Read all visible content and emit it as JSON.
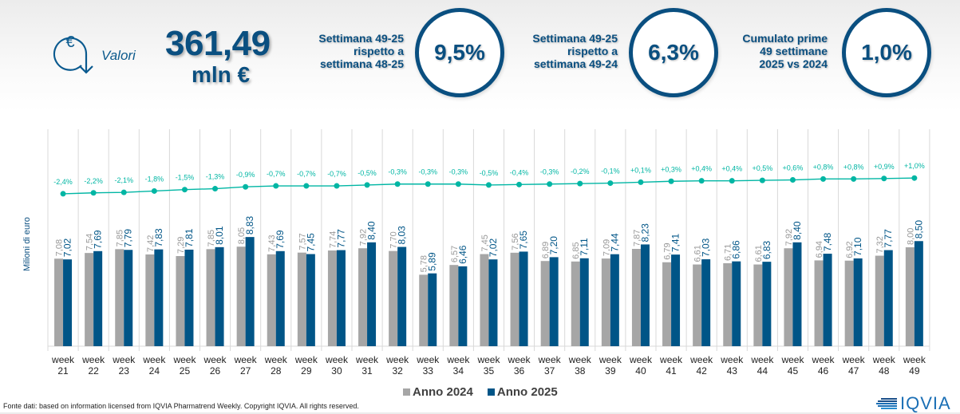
{
  "header": {
    "icon": "euro-circle-arrow-icon",
    "valori_label": "Valori",
    "total_value": "361,49",
    "total_unit": "mln €",
    "kpis": [
      {
        "label_lines": [
          "Settimana 49-25",
          "rispetto a",
          "settimana 48-25"
        ],
        "value": "9,5%"
      },
      {
        "label_lines": [
          "Settimana 49-25",
          "rispetto a",
          "settimana 49-24"
        ],
        "value": "6,3%"
      },
      {
        "label_lines": [
          "Cumulato prime",
          "49 settimane",
          "2025 vs 2024"
        ],
        "value": "1,0%"
      }
    ]
  },
  "chart_data": {
    "type": "bar",
    "title": "",
    "xlabel": "",
    "ylabel": "Milioni di euro",
    "ylim": [
      0,
      9
    ],
    "grid": "vertical separators",
    "legend_position": "bottom-center",
    "categories": [
      "week 21",
      "week 22",
      "week 23",
      "week 24",
      "week 25",
      "week 26",
      "week 27",
      "week 28",
      "week 29",
      "week 30",
      "week 31",
      "week 32",
      "week 33",
      "week 34",
      "week 35",
      "week 36",
      "week 37",
      "week 38",
      "week 39",
      "week 40",
      "week 41",
      "week 42",
      "week 43",
      "week 44",
      "week 45",
      "week 46",
      "week 47",
      "week 48",
      "week 49"
    ],
    "series": [
      {
        "name": "Anno 2024",
        "color": "#a6a6a6",
        "label_color": "#999999",
        "values": [
          7.08,
          7.54,
          7.85,
          7.42,
          7.29,
          7.85,
          8.05,
          7.43,
          7.57,
          7.74,
          7.92,
          7.7,
          5.78,
          6.57,
          7.45,
          7.56,
          6.89,
          6.85,
          7.09,
          7.87,
          6.79,
          6.61,
          6.71,
          6.61,
          7.92,
          6.94,
          6.92,
          7.32,
          8.0
        ],
        "labels": [
          "7,08",
          "7,54",
          "7,85",
          "7,42",
          "7,29",
          "7,85",
          "8,05",
          "7,43",
          "7,57",
          "7,74",
          "7,92",
          "7,70",
          "5,78",
          "6,57",
          "7,45",
          "7,56",
          "6,89",
          "6,85",
          "7,09",
          "7,87",
          "6,79",
          "6,61",
          "6,71",
          "6,61",
          "7,92",
          "6,94",
          "6,92",
          "7,32",
          "8,00"
        ]
      },
      {
        "name": "Anno 2025",
        "color": "#005587",
        "label_color": "#005587",
        "values": [
          7.02,
          7.69,
          7.79,
          7.83,
          7.81,
          8.01,
          8.83,
          7.69,
          7.45,
          7.77,
          8.4,
          8.03,
          5.89,
          6.46,
          7.02,
          7.65,
          7.2,
          7.11,
          7.44,
          8.23,
          7.41,
          7.03,
          6.86,
          6.83,
          8.4,
          7.48,
          7.1,
          7.77,
          8.5
        ],
        "labels": [
          "7,02",
          "7,69",
          "7,79",
          "7,83",
          "7,81",
          "8,01",
          "8,83",
          "7,69",
          "7,45",
          "7,77",
          "8,40",
          "8,03",
          "5,89",
          "6,46",
          "7,02",
          "7,65",
          "7,20",
          "7,11",
          "7,44",
          "8,23",
          "7,41",
          "7,03",
          "6,86",
          "6,83",
          "8,40",
          "7,48",
          "7,10",
          "7,77",
          "8,50"
        ]
      }
    ],
    "cumulative_line": {
      "name": "Cumulato 2025 vs 2024",
      "color": "#00b6a4",
      "values": [
        -2.4,
        -2.2,
        -2.1,
        -1.8,
        -1.5,
        -1.3,
        -0.9,
        -0.7,
        -0.7,
        -0.7,
        -0.5,
        -0.3,
        -0.3,
        -0.3,
        -0.5,
        -0.4,
        -0.3,
        -0.2,
        -0.1,
        0.1,
        0.3,
        0.4,
        0.4,
        0.5,
        0.6,
        0.8,
        0.8,
        0.9,
        1.0
      ],
      "labels": [
        "-2,4%",
        "-2,2%",
        "-2,1%",
        "-1,8%",
        "-1,5%",
        "-1,3%",
        "-0,9%",
        "-0,7%",
        "-0,7%",
        "-0,7%",
        "-0,5%",
        "-0,3%",
        "-0,3%",
        "-0,3%",
        "-0,5%",
        "-0,4%",
        "-0,3%",
        "-0,2%",
        "-0,1%",
        "+0,1%",
        "+0,3%",
        "+0,4%",
        "+0,4%",
        "+0,5%",
        "+0,6%",
        "+0,8%",
        "+0,8%",
        "+0,9%",
        "+1,0%"
      ]
    }
  },
  "footer": {
    "source_note": "Fonte dati: based on information licensed from IQVIA Pharmatrend Weekly. Copyright IQVIA. All rights reserved.",
    "logo_text": "IQVIA",
    "legend": [
      {
        "label": "Anno 2024",
        "color": "#a6a6a6"
      },
      {
        "label": "Anno 2025",
        "color": "#005587"
      }
    ]
  }
}
